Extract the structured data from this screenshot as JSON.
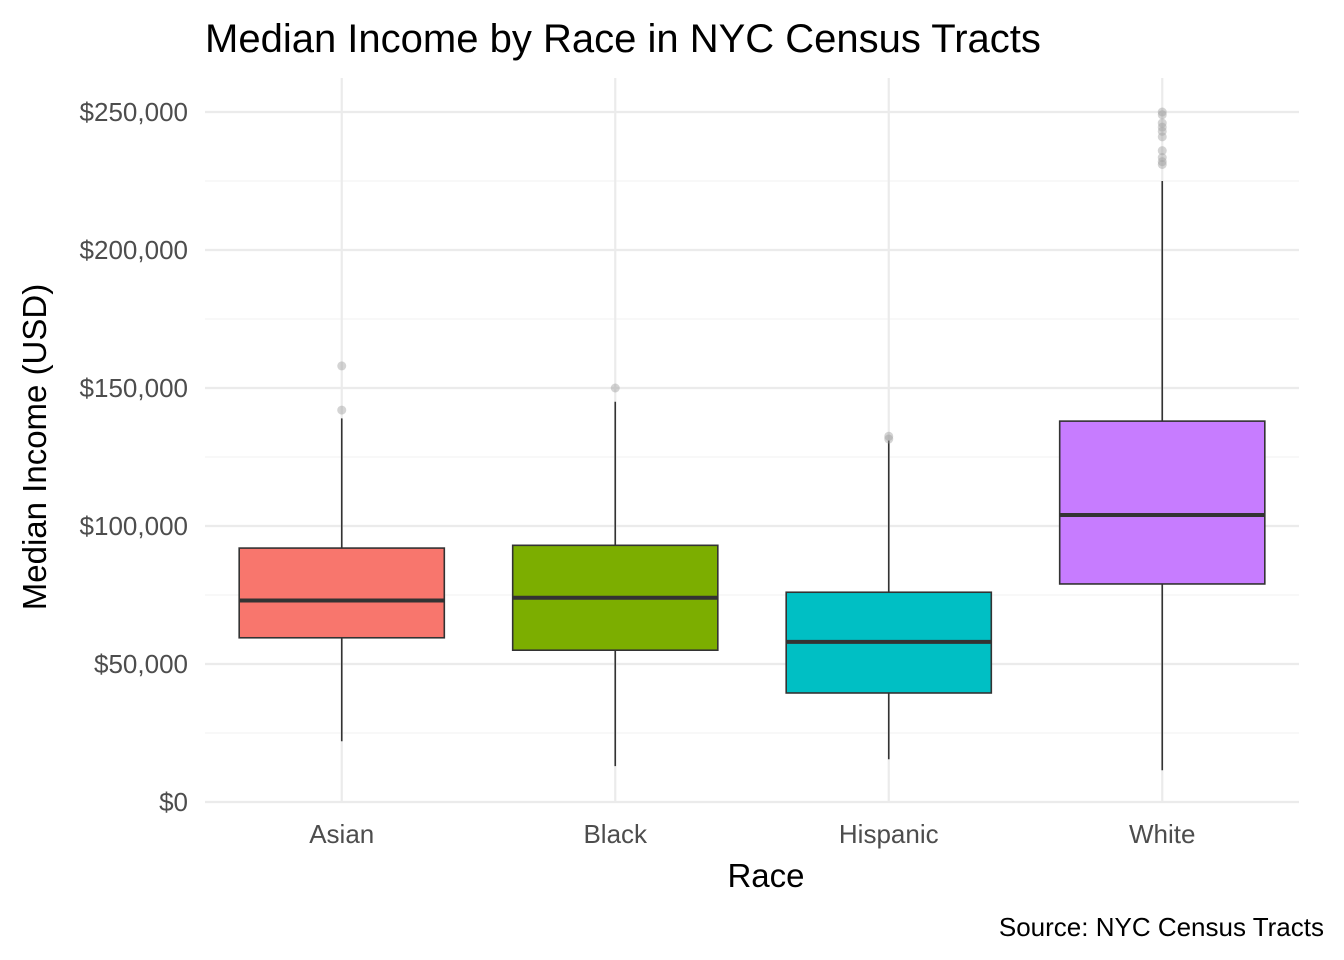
{
  "chart_data": {
    "type": "boxplot",
    "title": "Median Income by Race in NYC Census Tracts",
    "xlabel": "Race",
    "ylabel": "Median Income (USD)",
    "caption": "Source: NYC Census Tracts",
    "ylim": [
      0,
      250000
    ],
    "y_ticks": [
      0,
      50000,
      100000,
      150000,
      200000,
      250000
    ],
    "y_tick_labels": [
      "$0",
      "$50,000",
      "$100,000",
      "$150,000",
      "$200,000",
      "$250,000"
    ],
    "y_minor_ticks": [
      25000,
      75000,
      125000,
      175000,
      225000
    ],
    "grid": true,
    "legend": "none",
    "categories": [
      "Asian",
      "Black",
      "Hispanic",
      "White"
    ],
    "series": [
      {
        "category": "Asian",
        "color": "#F8766D",
        "whisker_low": 22000,
        "q1": 59500,
        "median": 73000,
        "q3": 92000,
        "whisker_high": 139000,
        "outliers": [
          142000,
          158000
        ]
      },
      {
        "category": "Black",
        "color": "#7CAE00",
        "whisker_low": 13000,
        "q1": 55000,
        "median": 74000,
        "q3": 93000,
        "whisker_high": 145000,
        "outliers": [
          150000
        ]
      },
      {
        "category": "Hispanic",
        "color": "#00BFC4",
        "whisker_low": 15500,
        "q1": 39500,
        "median": 58000,
        "q3": 76000,
        "whisker_high": 131000,
        "outliers": [
          131500,
          132500
        ]
      },
      {
        "category": "White",
        "color": "#C77CFF",
        "whisker_low": 11500,
        "q1": 79000,
        "median": 104000,
        "q3": 138000,
        "whisker_high": 225000,
        "outliers": [
          231000,
          232000,
          233500,
          236000,
          241000,
          243000,
          244500,
          246000,
          249000,
          250000
        ]
      }
    ]
  }
}
